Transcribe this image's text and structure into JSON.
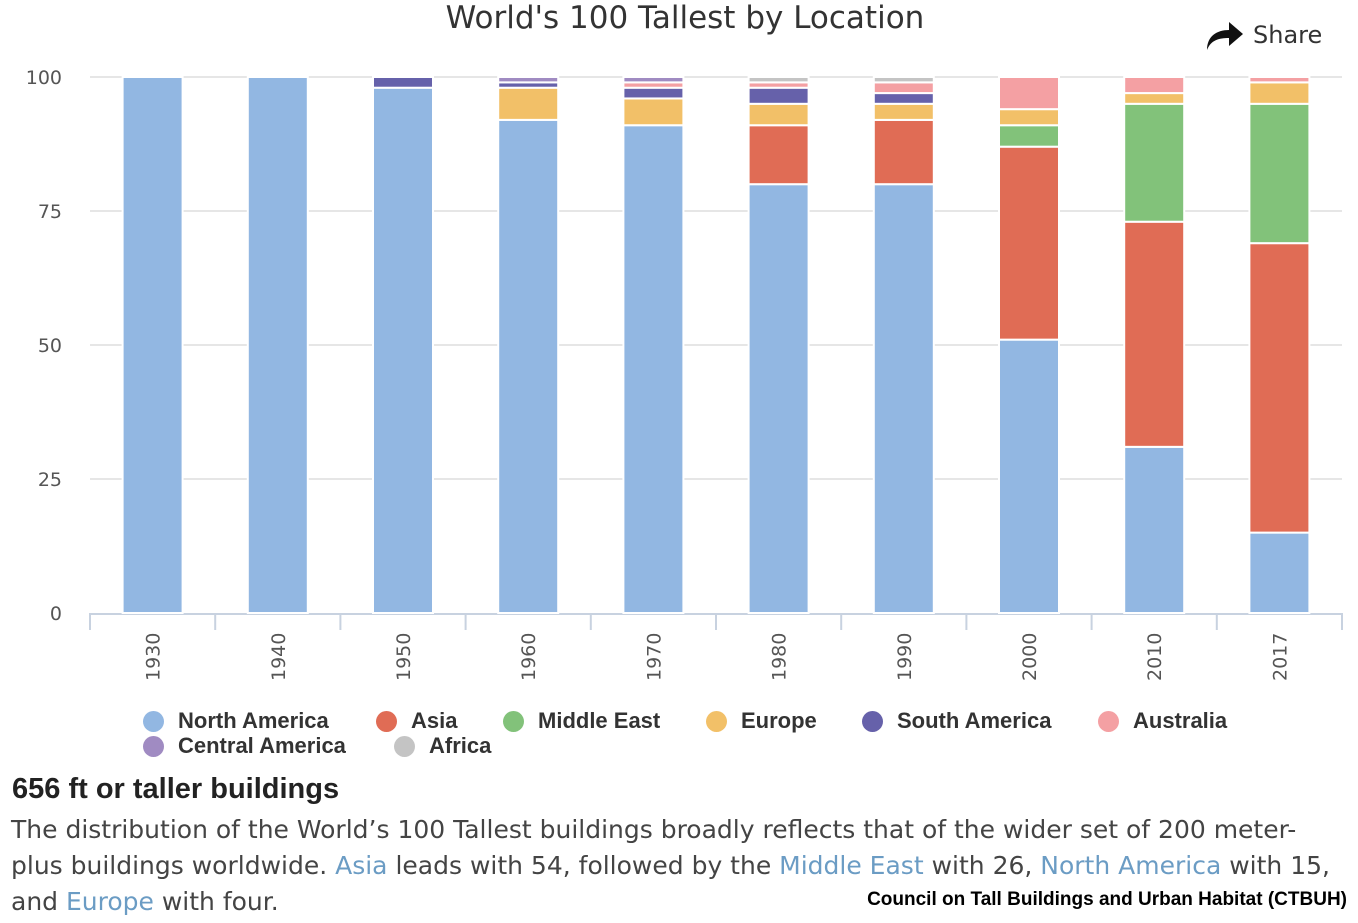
{
  "chart_data": {
    "type": "bar",
    "stacked": true,
    "title": "World's 100 Tallest by Location",
    "xlabel": "",
    "ylabel": "",
    "ylim": [
      0,
      100
    ],
    "yticks": [
      0,
      25,
      50,
      75,
      100
    ],
    "categories": [
      "1930",
      "1940",
      "1950",
      "1960",
      "1970",
      "1980",
      "1990",
      "2000",
      "2010",
      "2017"
    ],
    "series": [
      {
        "name": "North America",
        "color": "#92b7e2",
        "values": [
          100,
          100,
          98,
          92,
          91,
          80,
          80,
          51,
          31,
          15
        ]
      },
      {
        "name": "Asia",
        "color": "#e06c55",
        "values": [
          0,
          0,
          0,
          0,
          0,
          11,
          12,
          36,
          42,
          54
        ]
      },
      {
        "name": "Middle East",
        "color": "#82c27a",
        "values": [
          0,
          0,
          0,
          0,
          0,
          0,
          0,
          4,
          22,
          26
        ]
      },
      {
        "name": "Europe",
        "color": "#f2c068",
        "values": [
          0,
          0,
          0,
          6,
          5,
          4,
          3,
          3,
          2,
          4
        ]
      },
      {
        "name": "South America",
        "color": "#6661aa",
        "values": [
          0,
          0,
          2,
          1,
          2,
          3,
          2,
          0,
          0,
          0
        ]
      },
      {
        "name": "Australia",
        "color": "#f4a0a3",
        "values": [
          0,
          0,
          0,
          0,
          1,
          1,
          2,
          6,
          3,
          1
        ]
      },
      {
        "name": "Central America",
        "color": "#a08bc2",
        "values": [
          0,
          0,
          0,
          1,
          1,
          0,
          0,
          0,
          0,
          0
        ]
      },
      {
        "name": "Africa",
        "color": "#c4c4c4",
        "values": [
          0,
          0,
          0,
          0,
          0,
          1,
          1,
          0,
          0,
          0
        ]
      }
    ],
    "legend": "bottom",
    "grid": true
  },
  "share_label": "Share",
  "subtitle": "656 ft or taller buildings",
  "desc": {
    "p1": "The distribution of the World’s 100 Tallest buildings broadly reflects that of the wider set of 200 meter-plus buildings worldwide. ",
    "l1": "Asia",
    "p2": " leads with 54, followed by the ",
    "l2": "Middle East",
    "p3": " with 26, ",
    "l3": "North America",
    "p4": " with 15, and ",
    "l4": "Europe",
    "p5": " with four."
  },
  "credit": "Council on Tall Buildings and Urban Habitat (CTBUH)"
}
